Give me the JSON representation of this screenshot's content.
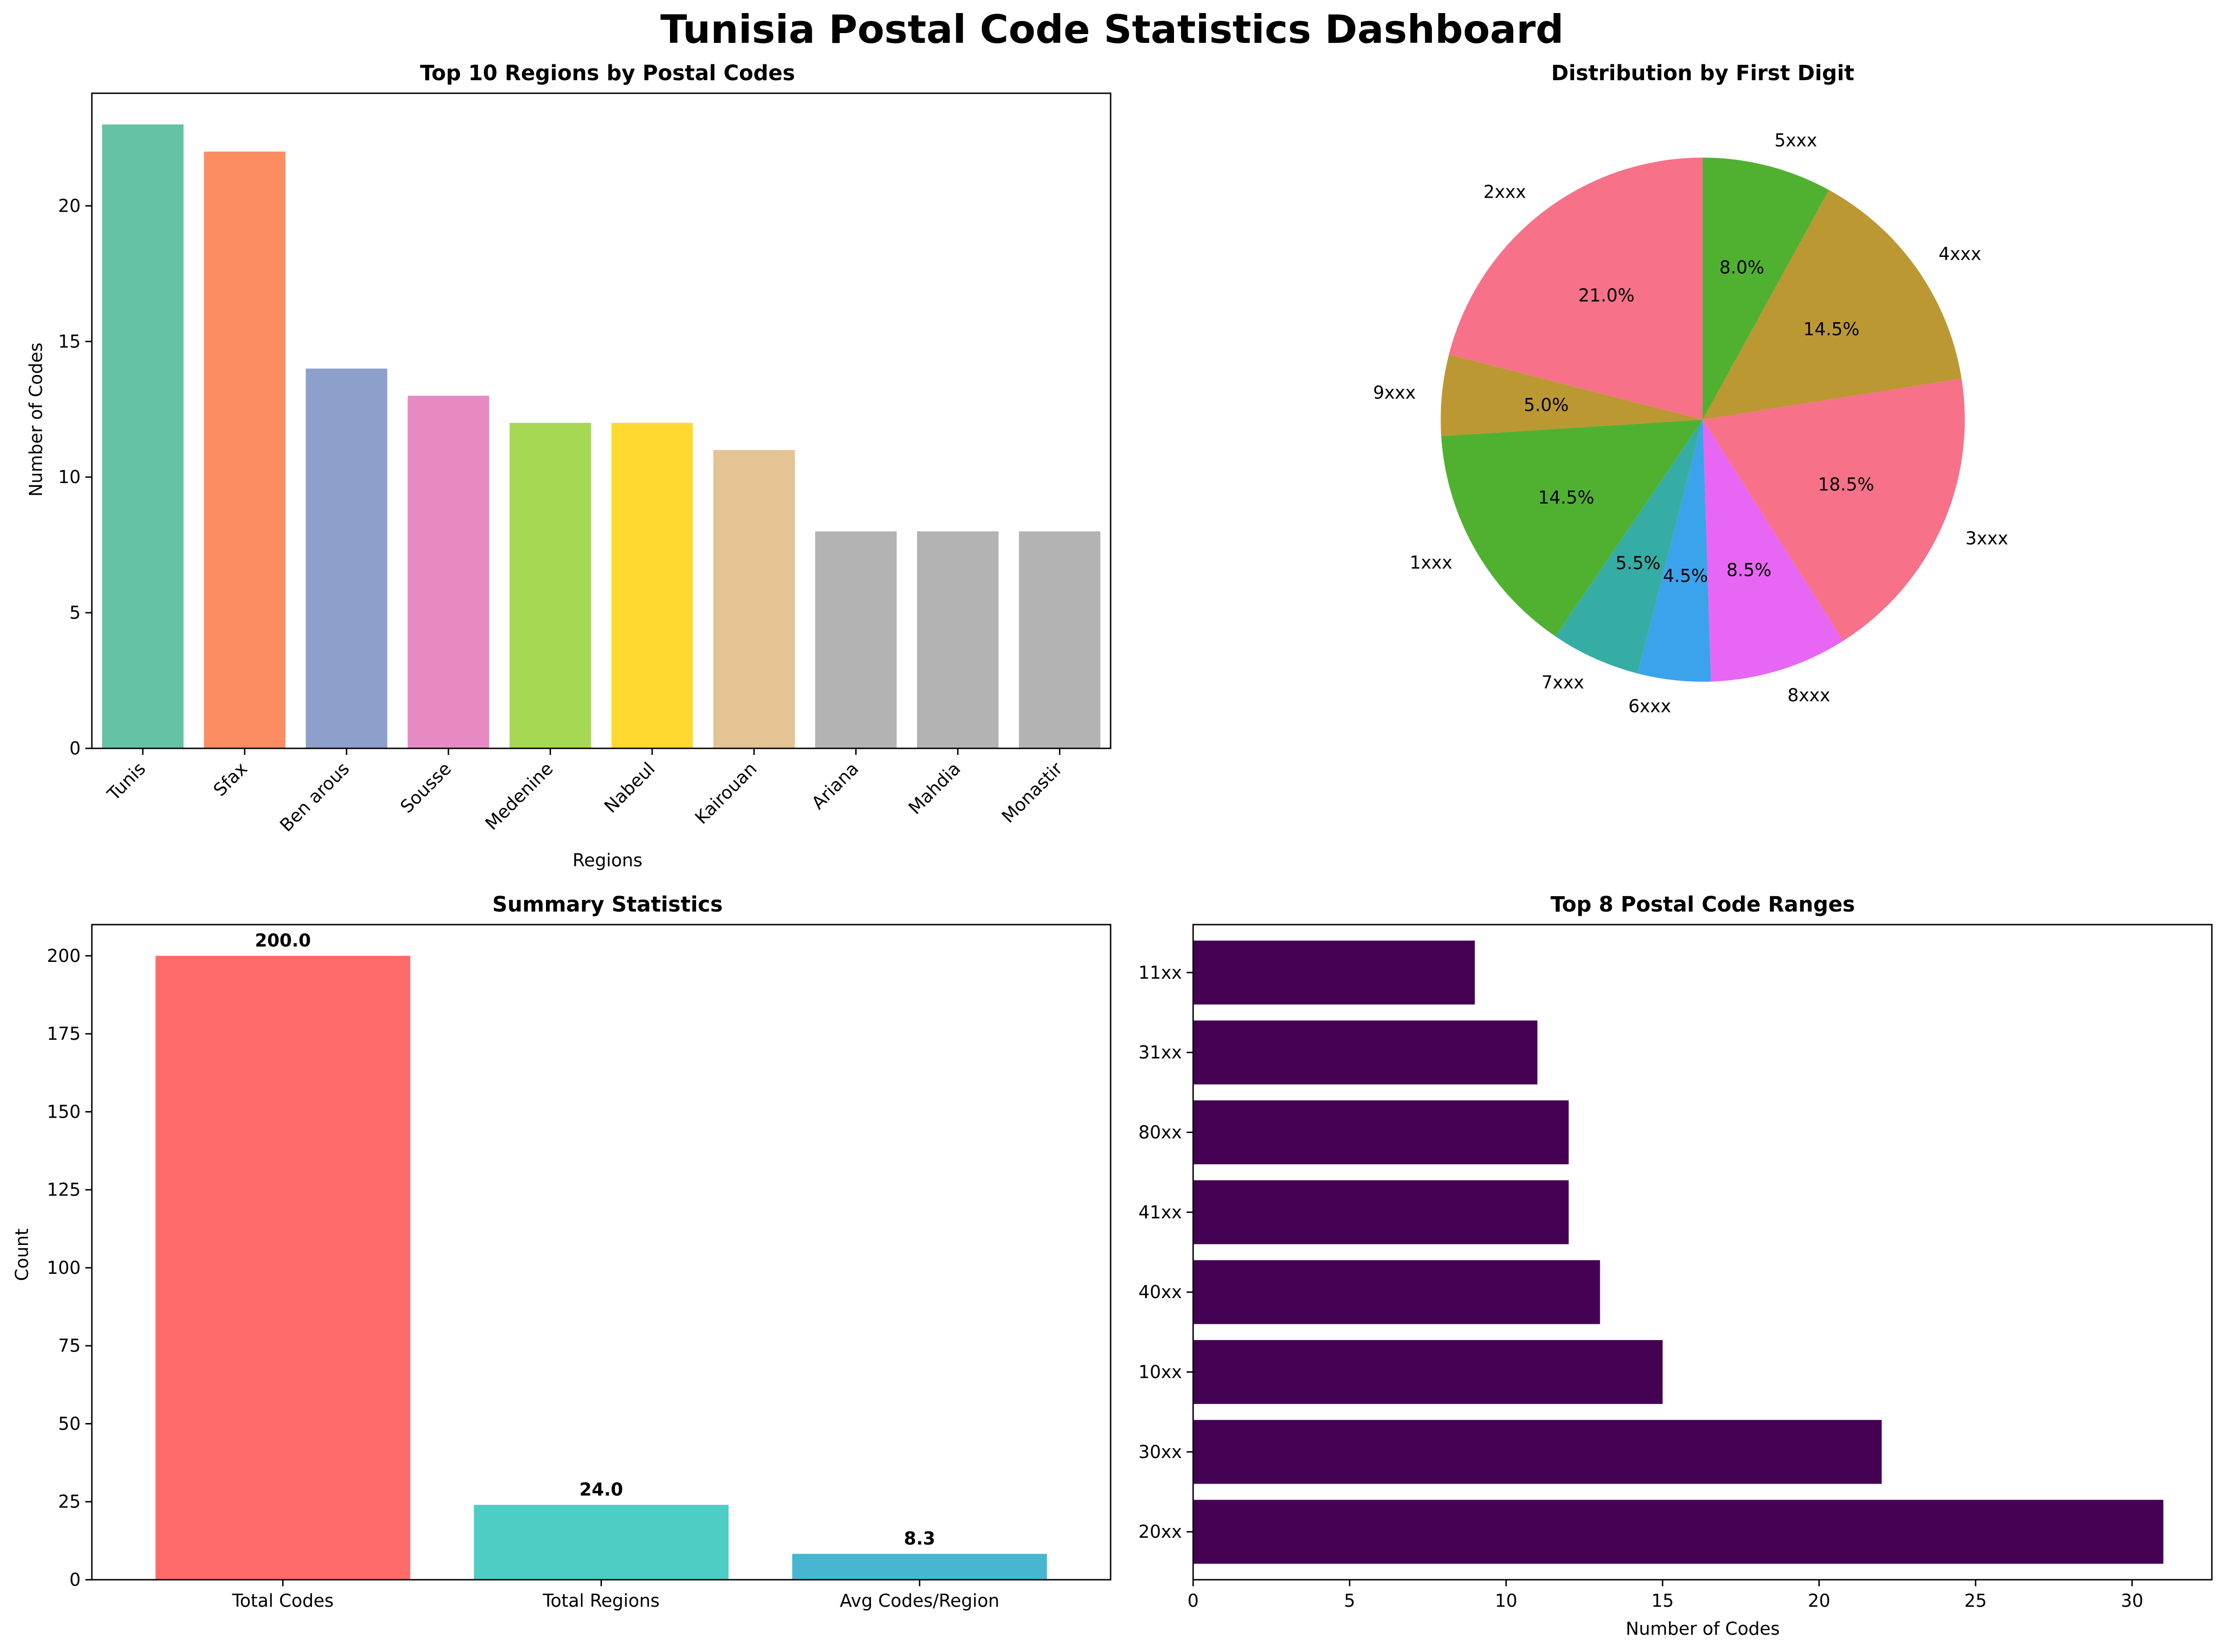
{
  "title": "Tunisia Postal Code Statistics Dashboard",
  "chart_data": [
    {
      "id": "top_regions",
      "type": "bar",
      "title": "Top 10 Regions by Postal Codes",
      "xlabel": "Regions",
      "ylabel": "Number of Codes",
      "categories": [
        "Tunis",
        "Sfax",
        "Ben arous",
        "Sousse",
        "Medenine",
        "Nabeul",
        "Kairouan",
        "Ariana",
        "Mahdia",
        "Monastir"
      ],
      "values": [
        23,
        22,
        14,
        13,
        12,
        12,
        11,
        8,
        8,
        8
      ],
      "colors": [
        "#66c2a5",
        "#fc8d62",
        "#8da0cb",
        "#e78ac3",
        "#a6d854",
        "#ffd92f",
        "#e5c494",
        "#b3b3b3",
        "#b3b3b3",
        "#b3b3b3"
      ],
      "ylim": [
        0,
        24.15
      ],
      "yticks": [
        0,
        5,
        10,
        15,
        20
      ],
      "grid": false
    },
    {
      "id": "first_digit",
      "type": "pie",
      "title": "Distribution by First Digit",
      "labels": [
        "5xxx",
        "4xxx",
        "3xxx",
        "8xxx",
        "6xxx",
        "7xxx",
        "1xxx",
        "9xxx",
        "2xxx"
      ],
      "values": [
        8.0,
        14.5,
        18.5,
        8.5,
        4.5,
        5.5,
        14.5,
        5.0,
        21.0
      ],
      "percent_labels": [
        "8.0%",
        "14.5%",
        "18.5%",
        "8.5%",
        "4.5%",
        "5.5%",
        "14.5%",
        "5.0%",
        "21.0%"
      ],
      "colors": [
        "#50b131",
        "#bb9832",
        "#f77189",
        "#e866f4",
        "#3ba3ec",
        "#36ada4",
        "#50b131",
        "#bb9832",
        "#f77189"
      ],
      "start_angle_deg": 90,
      "direction": "clockwise"
    },
    {
      "id": "summary",
      "type": "bar",
      "title": "Summary Statistics",
      "xlabel": "",
      "ylabel": "Count",
      "categories": [
        "Total Codes",
        "Total Regions",
        "Avg Codes/Region"
      ],
      "values": [
        200.0,
        24.0,
        8.3
      ],
      "value_labels": [
        "200.0",
        "24.0",
        "8.3"
      ],
      "colors": [
        "#ff6b6b",
        "#4ecdc4",
        "#45b7d1"
      ],
      "ylim": [
        0,
        210
      ],
      "yticks": [
        0,
        25,
        50,
        75,
        100,
        125,
        150,
        175,
        200
      ],
      "grid": false
    },
    {
      "id": "code_ranges",
      "type": "bar",
      "orientation": "horizontal",
      "title": "Top 8 Postal Code Ranges",
      "xlabel": "Number of Codes",
      "ylabel": "",
      "categories": [
        "20xx",
        "30xx",
        "10xx",
        "40xx",
        "41xx",
        "80xx",
        "31xx",
        "11xx"
      ],
      "values": [
        31,
        22,
        15,
        13,
        12,
        12,
        11,
        9
      ],
      "color": "#440154",
      "xlim": [
        0,
        32.55
      ],
      "xticks": [
        0,
        5,
        10,
        15,
        20,
        25,
        30
      ],
      "grid": false
    }
  ]
}
